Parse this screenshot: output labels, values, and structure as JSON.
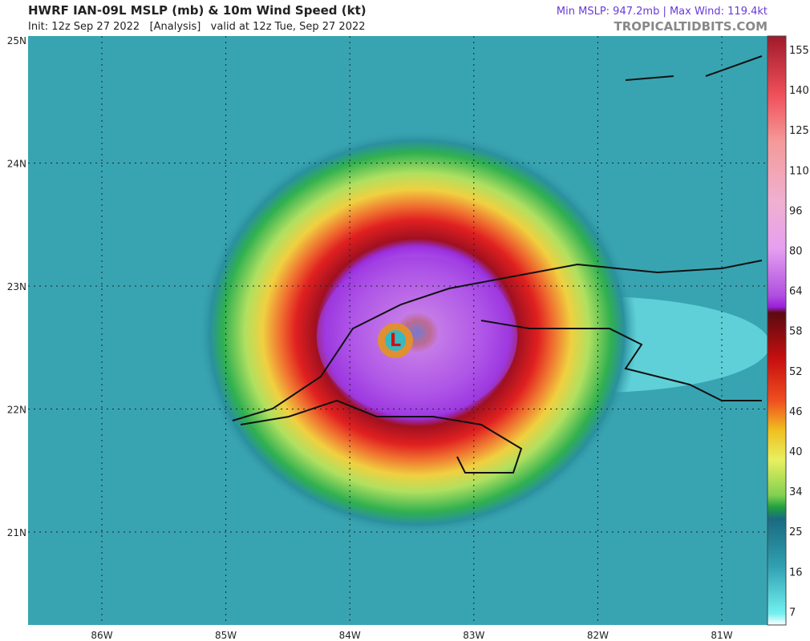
{
  "header": {
    "title": "HWRF IAN-09L MSLP (mb) & 10m Wind Speed (kt)",
    "subtitle": "Init: 12z Sep 27 2022   [Analysis]   valid at 12z Tue, Sep 27 2022",
    "stats": "Min MSLP: 947.2mb | Max Wind: 119.4kt",
    "source": "TROPICALTIDBITS.COM"
  },
  "map": {
    "lat_labels": [
      "25N",
      "24N",
      "23N",
      "22N",
      "21N"
    ],
    "lon_labels": [
      "86W",
      "85W",
      "84W",
      "83W",
      "82W",
      "81W"
    ],
    "center_label": "L"
  },
  "colorbar": {
    "labels": [
      155,
      140,
      125,
      110,
      96,
      80,
      64,
      58,
      52,
      46,
      40,
      34,
      25,
      16,
      7
    ]
  }
}
